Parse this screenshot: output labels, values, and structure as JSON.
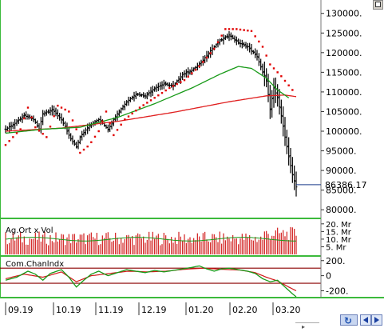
{
  "colors": {
    "candles": "#000000",
    "sar": "#e00000",
    "ma_short": "#189a18",
    "ma_long": "#e02020",
    "volume_bars": "#d21f1f",
    "volume_avg": "#189a18",
    "cci_line": "#189a18",
    "cci_signal": "#d01818",
    "cci_bands": "#8b0000",
    "frame": "#3cba3c",
    "price_marker": "#1a3a8a"
  },
  "panels": {
    "volume": {
      "title": "Ag.Ort x Vol"
    },
    "cci": {
      "title": "Com.Chanlndx"
    }
  },
  "controls": {
    "refresh_icon": "refresh-icon",
    "prev_icon": "arrow-left-icon",
    "next_icon": "arrow-right-icon",
    "top_icon": "scroll-up-icon"
  },
  "chart_data": [
    {
      "type": "candlestick",
      "ylim": [
        78000,
        133000
      ],
      "yticks": [
        "130000.",
        "125000.",
        "120000.",
        "115000.",
        "110000.",
        "105000.",
        "100000.",
        "95000.",
        "90000.",
        "85000.",
        "80000."
      ],
      "ytick_values": [
        130000,
        125000,
        120000,
        115000,
        110000,
        105000,
        100000,
        95000,
        90000,
        85000,
        80000
      ],
      "last_price_label": "86386.17",
      "last_price": 86386.17,
      "xticks": [
        "09.19",
        "10.19",
        "11.19",
        "12.19",
        "01.20",
        "02.20",
        "03.20"
      ],
      "grid": false,
      "price_anchors": [
        [
          0,
          100500
        ],
        [
          5,
          102000
        ],
        [
          10,
          104000
        ],
        [
          15,
          103000
        ],
        [
          18,
          100500
        ],
        [
          20,
          104500
        ],
        [
          25,
          105500
        ],
        [
          30,
          103000
        ],
        [
          35,
          98000
        ],
        [
          38,
          96000
        ],
        [
          40,
          98500
        ],
        [
          45,
          101500
        ],
        [
          50,
          103000
        ],
        [
          55,
          100500
        ],
        [
          60,
          104500
        ],
        [
          65,
          107500
        ],
        [
          70,
          109500
        ],
        [
          75,
          109000
        ],
        [
          80,
          111000
        ],
        [
          85,
          112000
        ],
        [
          90,
          111500
        ],
        [
          95,
          114500
        ],
        [
          100,
          115500
        ],
        [
          105,
          117500
        ],
        [
          110,
          120500
        ],
        [
          115,
          123000
        ],
        [
          120,
          124500
        ],
        [
          125,
          122500
        ],
        [
          130,
          121500
        ],
        [
          135,
          119000
        ],
        [
          138,
          115000
        ],
        [
          140,
          113000
        ],
        [
          142,
          105500
        ],
        [
          144,
          111000
        ],
        [
          146,
          108500
        ],
        [
          148,
          104000
        ],
        [
          150,
          98500
        ],
        [
          152,
          93500
        ],
        [
          154,
          89000
        ],
        [
          156,
          85800
        ]
      ],
      "ma_short_anchors": [
        [
          0,
          99500
        ],
        [
          20,
          100500
        ],
        [
          40,
          101000
        ],
        [
          60,
          103500
        ],
        [
          80,
          107000
        ],
        [
          100,
          111000
        ],
        [
          115,
          114500
        ],
        [
          125,
          116500
        ],
        [
          132,
          116000
        ],
        [
          140,
          113500
        ],
        [
          146,
          110500
        ],
        [
          152,
          108500
        ]
      ],
      "ma_long_anchors": [
        [
          0,
          100000
        ],
        [
          30,
          100800
        ],
        [
          60,
          102500
        ],
        [
          90,
          104800
        ],
        [
          120,
          107500
        ],
        [
          140,
          109000
        ],
        [
          150,
          109200
        ],
        [
          156,
          108800
        ]
      ],
      "sar_anchors": [
        [
          0,
          96500
        ],
        [
          8,
          100500
        ],
        [
          12,
          106000
        ],
        [
          16,
          101000
        ],
        [
          22,
          98500
        ],
        [
          28,
          106500
        ],
        [
          34,
          105000
        ],
        [
          38,
          100500
        ],
        [
          40,
          94500
        ],
        [
          45,
          96500
        ],
        [
          50,
          100000
        ],
        [
          54,
          105000
        ],
        [
          58,
          99000
        ],
        [
          64,
          103000
        ],
        [
          72,
          106000
        ],
        [
          80,
          108500
        ],
        [
          88,
          111000
        ],
        [
          96,
          113000
        ],
        [
          104,
          116500
        ],
        [
          112,
          121000
        ],
        [
          118,
          126000
        ],
        [
          124,
          126000
        ],
        [
          132,
          125500
        ],
        [
          138,
          121500
        ],
        [
          142,
          117000
        ],
        [
          148,
          114000
        ],
        [
          154,
          110500
        ]
      ],
      "series": [
        {
          "name": "",
          "kind": "ohlc"
        },
        {
          "name": "",
          "kind": "parabolic-sar"
        },
        {
          "name": "",
          "kind": "moving-average-short"
        },
        {
          "name": "",
          "kind": "moving-average-long"
        }
      ]
    },
    {
      "type": "bar",
      "title": "Ag.Ort x Vol",
      "yticks": [
        "20. Mr",
        "15. Mr",
        "10. Mr",
        "5. Mr"
      ],
      "ytick_values": [
        20,
        15,
        10,
        5
      ],
      "ylim": [
        0,
        22
      ],
      "unit": "Mr"
    },
    {
      "type": "line",
      "title": "Com.Chanlndx",
      "yticks": [
        "200.",
        "0",
        "-200."
      ],
      "ytick_values": [
        200,
        0,
        -200
      ],
      "ylim": [
        -280,
        240
      ],
      "bands": [
        100,
        -100
      ],
      "cci_anchors": [
        [
          0,
          -60
        ],
        [
          6,
          -20
        ],
        [
          12,
          60
        ],
        [
          16,
          20
        ],
        [
          20,
          -60
        ],
        [
          24,
          30
        ],
        [
          30,
          80
        ],
        [
          34,
          -20
        ],
        [
          38,
          -150
        ],
        [
          42,
          -60
        ],
        [
          46,
          20
        ],
        [
          50,
          60
        ],
        [
          55,
          0
        ],
        [
          60,
          40
        ],
        [
          65,
          80
        ],
        [
          70,
          60
        ],
        [
          75,
          40
        ],
        [
          80,
          70
        ],
        [
          85,
          50
        ],
        [
          90,
          70
        ],
        [
          95,
          90
        ],
        [
          100,
          110
        ],
        [
          104,
          130
        ],
        [
          108,
          90
        ],
        [
          112,
          60
        ],
        [
          116,
          90
        ],
        [
          120,
          100
        ],
        [
          125,
          80
        ],
        [
          130,
          60
        ],
        [
          134,
          30
        ],
        [
          138,
          -40
        ],
        [
          142,
          -80
        ],
        [
          146,
          -60
        ],
        [
          150,
          -150
        ],
        [
          154,
          -240
        ],
        [
          156,
          -280
        ]
      ],
      "signal_anchors": [
        [
          0,
          -40
        ],
        [
          10,
          20
        ],
        [
          20,
          -20
        ],
        [
          30,
          50
        ],
        [
          38,
          -80
        ],
        [
          46,
          0
        ],
        [
          56,
          30
        ],
        [
          66,
          60
        ],
        [
          76,
          50
        ],
        [
          86,
          60
        ],
        [
          96,
          85
        ],
        [
          106,
          100
        ],
        [
          116,
          85
        ],
        [
          126,
          75
        ],
        [
          134,
          40
        ],
        [
          140,
          -20
        ],
        [
          146,
          -70
        ],
        [
          152,
          -150
        ],
        [
          156,
          -200
        ]
      ]
    }
  ]
}
